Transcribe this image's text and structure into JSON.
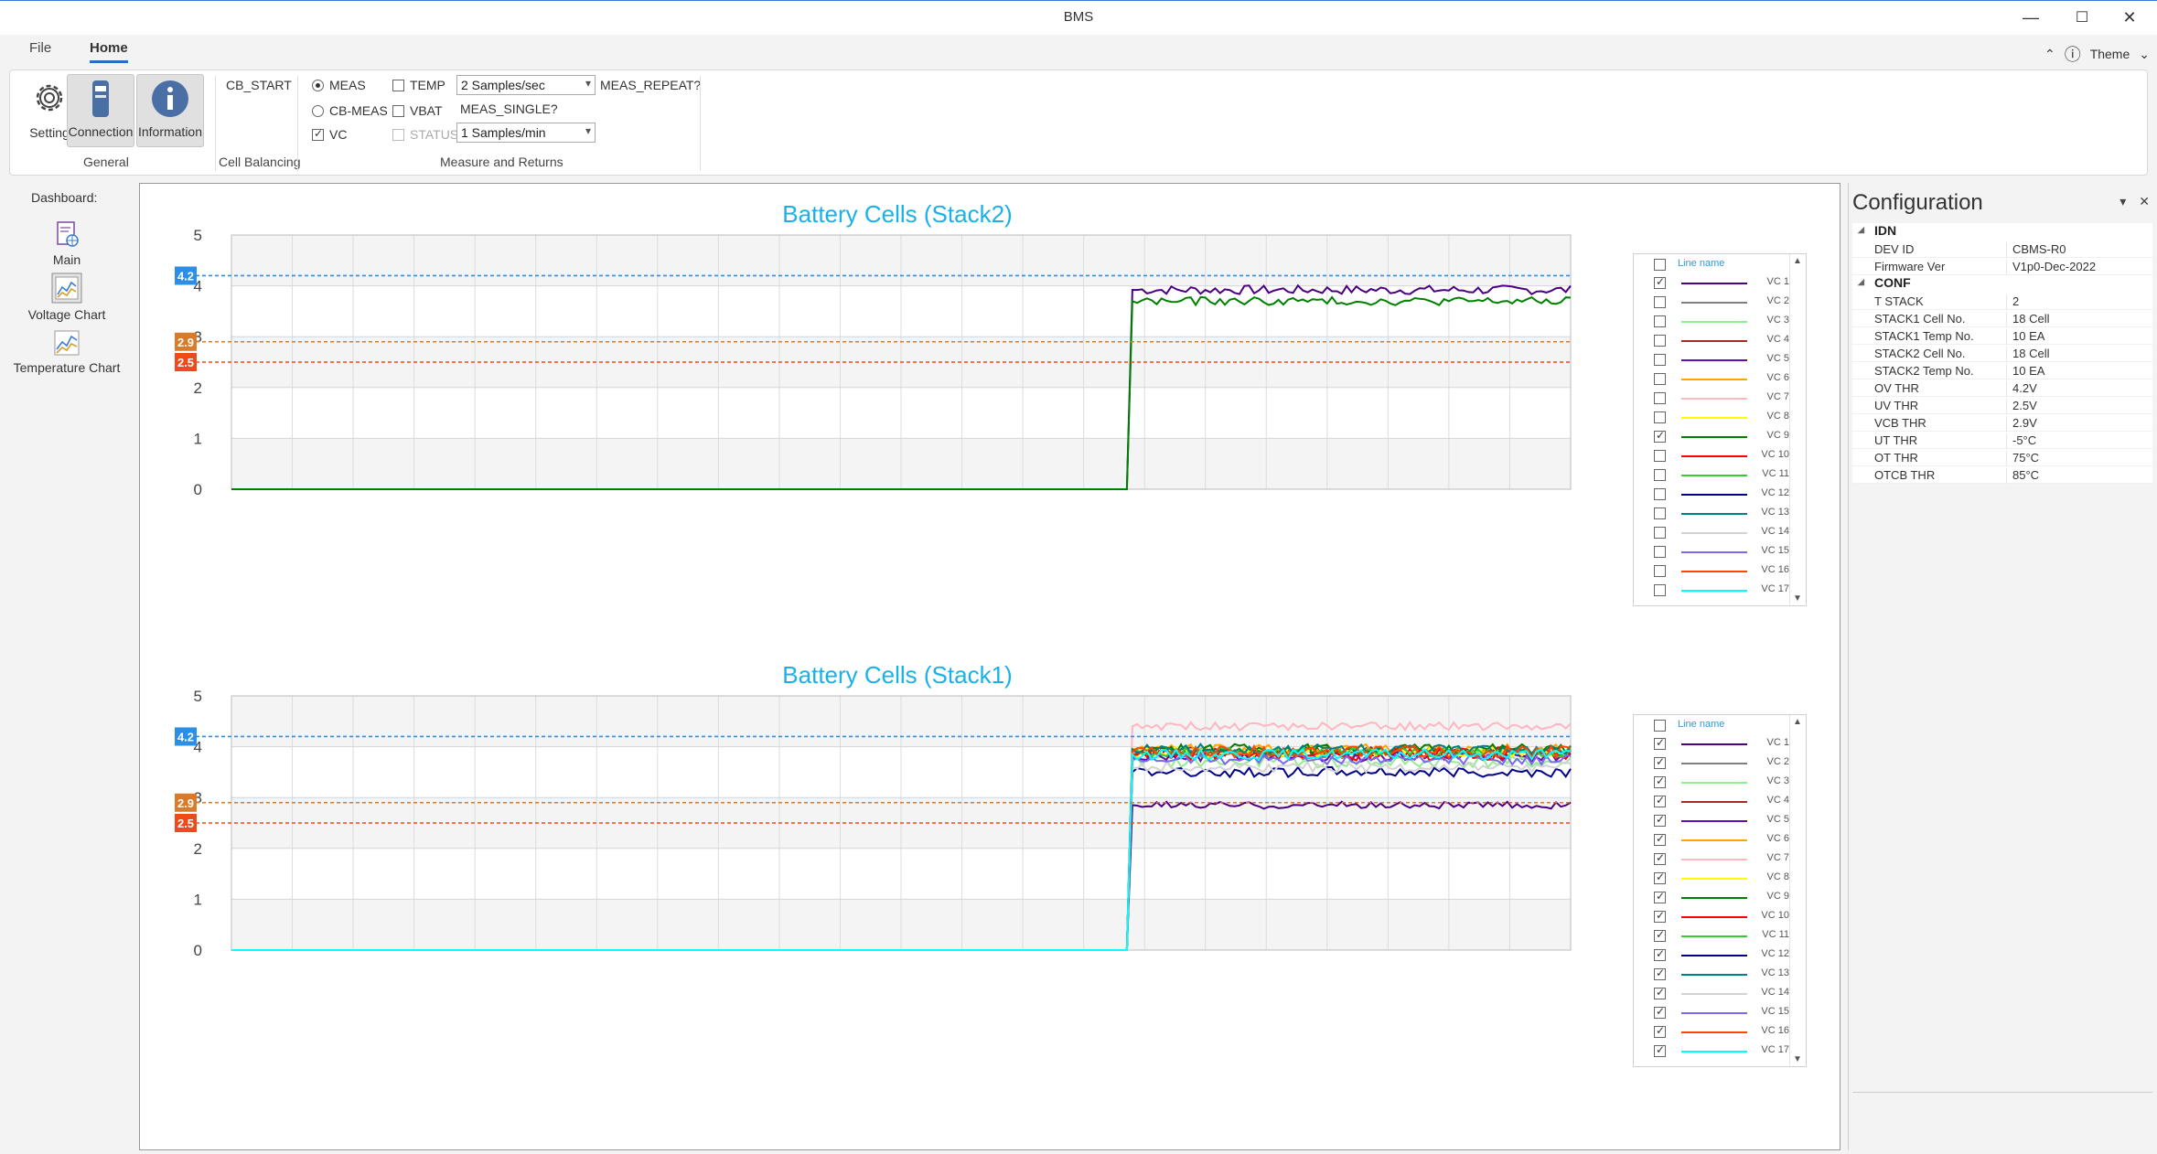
{
  "window": {
    "title": "BMS",
    "min": "—",
    "max": "☐",
    "close": "✕"
  },
  "tabs": {
    "file": "File",
    "home": "Home",
    "theme": "Theme",
    "collapse": "⌃",
    "info": "ⓘ",
    "theme_arrow": "⌄"
  },
  "ribbon": {
    "general": {
      "label": "General",
      "setting": "Setting",
      "connection": "Connection",
      "information": "Information"
    },
    "cell_balancing": {
      "label": "Cell Balancing",
      "cb_start": "CB_START"
    },
    "measure": {
      "label": "Measure and Returns",
      "meas": "MEAS",
      "cb_meas": "CB-MEAS",
      "vc": "VC",
      "temp": "TEMP",
      "vbat": "VBAT",
      "status": "STATUS",
      "rate1": "2 Samples/sec",
      "rate2": "1 Samples/min",
      "meas_repeat": "MEAS_REPEAT?",
      "meas_single": "MEAS_SINGLE?"
    }
  },
  "dashboard": {
    "label": "Dashboard:",
    "main": "Main",
    "voltage": "Voltage Chart",
    "temperature": "Temperature Chart"
  },
  "colors": {
    "title": "#1ab0e8",
    "vc1": "#4b0082",
    "vc2": "#808080",
    "vc3": "#90ee90",
    "vc4": "#a52a2a",
    "vc5": "#6a0dad",
    "vc6": "#ffa500",
    "vc7": "#ffb6c1",
    "vc8": "#ffff00",
    "vc9": "#008000",
    "vc10": "#ff0000",
    "vc11": "#32cd32",
    "vc12": "#00008b",
    "vc13": "#008080",
    "vc14": "#d3d3d3",
    "vc15": "#7b68ee",
    "vc16": "#ff4500",
    "vc17": "#00ffff"
  },
  "legend_header": "Line name",
  "chart_data": [
    {
      "type": "line",
      "title": "Battery Cells (Stack2)",
      "ylim": [
        0,
        5
      ],
      "yticks": [
        "0",
        "1",
        "2",
        "3",
        "4",
        "5"
      ],
      "thresholds": [
        {
          "value": 4.2,
          "label": "4.2",
          "color": "#2b8fe8"
        },
        {
          "value": 2.9,
          "label": "2.9",
          "color": "#d97b2b"
        },
        {
          "value": 2.5,
          "label": "2.5",
          "color": "#f04a1a"
        }
      ],
      "grid": true,
      "step_fraction": 0.67,
      "series": [
        {
          "name": "VC 1",
          "checked": true,
          "level": 3.92,
          "jitter": 0.09
        },
        {
          "name": "VC 2",
          "checked": false
        },
        {
          "name": "VC 3",
          "checked": false
        },
        {
          "name": "VC 4",
          "checked": false
        },
        {
          "name": "VC 5",
          "checked": false
        },
        {
          "name": "VC 6",
          "checked": false
        },
        {
          "name": "VC 7",
          "checked": false
        },
        {
          "name": "VC 8",
          "checked": false
        },
        {
          "name": "VC 9",
          "checked": true,
          "level": 3.7,
          "jitter": 0.08
        },
        {
          "name": "VC 10",
          "checked": false
        },
        {
          "name": "VC 11",
          "checked": false
        },
        {
          "name": "VC 12",
          "checked": false
        },
        {
          "name": "VC 13",
          "checked": false
        },
        {
          "name": "VC 14",
          "checked": false
        },
        {
          "name": "VC 15",
          "checked": false
        },
        {
          "name": "VC 16",
          "checked": false
        },
        {
          "name": "VC 17",
          "checked": false
        }
      ]
    },
    {
      "type": "line",
      "title": "Battery Cells (Stack1)",
      "ylim": [
        0,
        5
      ],
      "yticks": [
        "0",
        "1",
        "2",
        "3",
        "4",
        "5"
      ],
      "thresholds": [
        {
          "value": 4.2,
          "label": "4.2",
          "color": "#2b8fe8"
        },
        {
          "value": 2.9,
          "label": "2.9",
          "color": "#d97b2b"
        },
        {
          "value": 2.5,
          "label": "2.5",
          "color": "#f04a1a"
        }
      ],
      "grid": true,
      "step_fraction": 0.67,
      "series": [
        {
          "name": "VC 1",
          "checked": true,
          "level": 2.85,
          "jitter": 0.07
        },
        {
          "name": "VC 2",
          "checked": true,
          "level": 3.85,
          "jitter": 0.1
        },
        {
          "name": "VC 3",
          "checked": true,
          "level": 3.7,
          "jitter": 0.12
        },
        {
          "name": "VC 4",
          "checked": true,
          "level": 3.9,
          "jitter": 0.1
        },
        {
          "name": "VC 5",
          "checked": true,
          "level": 3.8,
          "jitter": 0.1
        },
        {
          "name": "VC 6",
          "checked": true,
          "level": 3.95,
          "jitter": 0.1
        },
        {
          "name": "VC 7",
          "checked": true,
          "level": 4.4,
          "jitter": 0.08
        },
        {
          "name": "VC 8",
          "checked": true,
          "level": 3.9,
          "jitter": 0.1
        },
        {
          "name": "VC 9",
          "checked": true,
          "level": 3.95,
          "jitter": 0.1
        },
        {
          "name": "VC 10",
          "checked": true,
          "level": 3.85,
          "jitter": 0.12
        },
        {
          "name": "VC 11",
          "checked": true,
          "level": 3.9,
          "jitter": 0.1
        },
        {
          "name": "VC 12",
          "checked": true,
          "level": 3.5,
          "jitter": 0.1
        },
        {
          "name": "VC 13",
          "checked": true,
          "level": 3.95,
          "jitter": 0.1
        },
        {
          "name": "VC 14",
          "checked": true,
          "level": 3.6,
          "jitter": 0.1
        },
        {
          "name": "VC 15",
          "checked": true,
          "level": 3.75,
          "jitter": 0.1
        },
        {
          "name": "VC 16",
          "checked": true,
          "level": 3.9,
          "jitter": 0.12
        },
        {
          "name": "VC 17",
          "checked": true,
          "level": 3.85,
          "jitter": 0.1
        }
      ]
    }
  ],
  "config": {
    "title": "Configuration",
    "pin": "▾",
    "close": "✕",
    "sections": [
      {
        "name": "IDN",
        "rows": [
          {
            "k": "DEV ID",
            "v": "CBMS-R0"
          },
          {
            "k": "Firmware Ver",
            "v": "V1p0-Dec-2022"
          }
        ]
      },
      {
        "name": "CONF",
        "rows": [
          {
            "k": "T STACK",
            "v": "2"
          },
          {
            "k": "STACK1 Cell No.",
            "v": "18 Cell"
          },
          {
            "k": "STACK1 Temp No.",
            "v": "10 EA"
          },
          {
            "k": "STACK2 Cell No.",
            "v": "18 Cell"
          },
          {
            "k": "STACK2 Temp No.",
            "v": "10 EA"
          },
          {
            "k": "OV THR",
            "v": "4.2V"
          },
          {
            "k": "UV THR",
            "v": "2.5V"
          },
          {
            "k": "VCB THR",
            "v": "2.9V"
          },
          {
            "k": "UT THR",
            "v": "-5°C"
          },
          {
            "k": "OT THR",
            "v": "75°C"
          },
          {
            "k": "OTCB THR",
            "v": "85°C"
          }
        ]
      }
    ]
  }
}
